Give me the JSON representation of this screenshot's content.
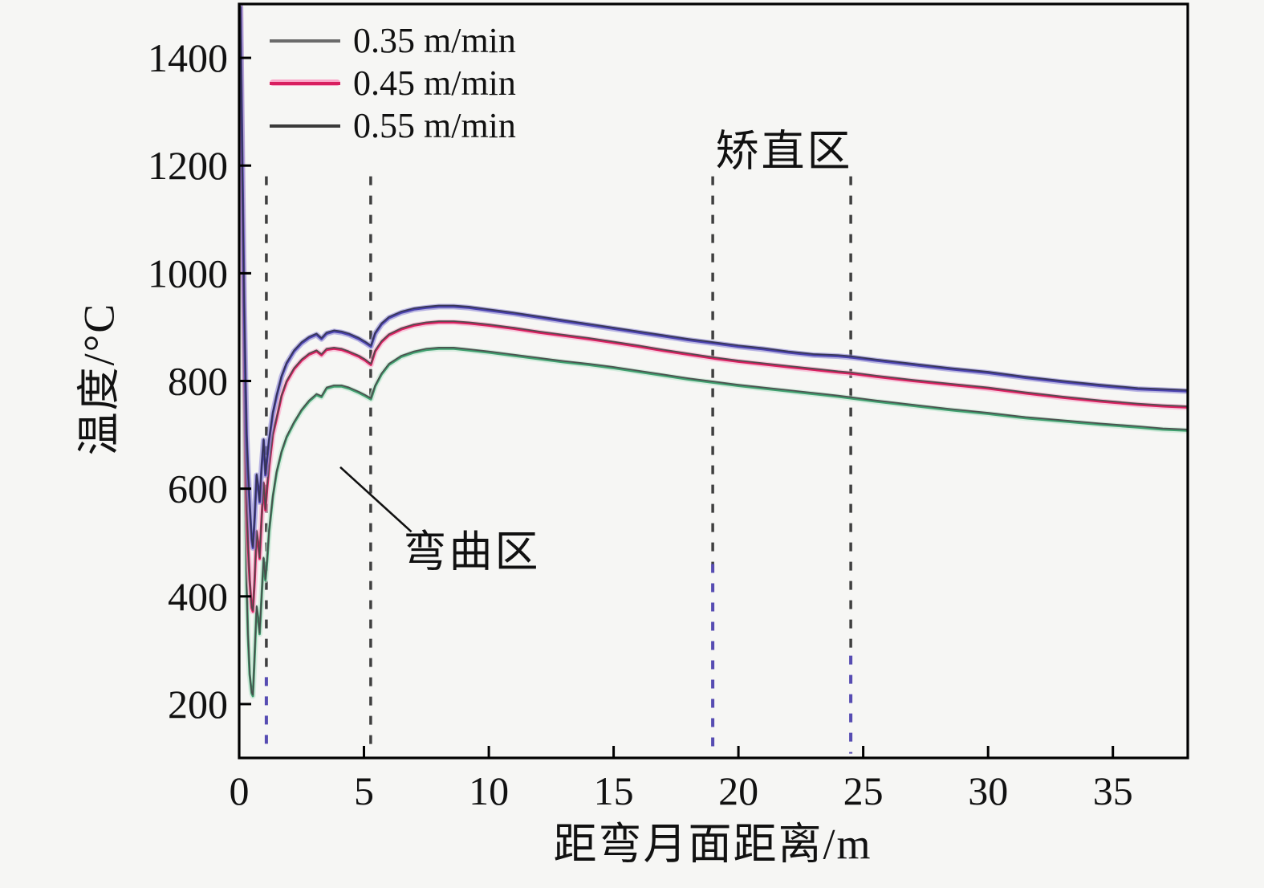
{
  "figure": {
    "background_color": "#f6f6f4",
    "frame_color": "#000000",
    "text_color": "#111111"
  },
  "legend": {
    "position": "top-left",
    "items": [
      {
        "label": "0.35 m/min",
        "line_color": "#6b6b6b",
        "halo_color": "none"
      },
      {
        "label": "0.45 m/min",
        "line_color": "#d81f5f",
        "halo_color": "#f9a8c9"
      },
      {
        "label": "0.55 m/min",
        "line_color": "#3a3a3a",
        "halo_color": "none"
      }
    ]
  },
  "annotations": {
    "straightening_zone_label": "矫直区",
    "bending_zone_label": "弯曲区"
  },
  "chart_data": {
    "type": "line",
    "title": "",
    "xlabel": "距弯月面距离/m",
    "ylabel": "温度/°C",
    "xlim": [
      0,
      38
    ],
    "ylim": [
      100,
      1500
    ],
    "x_ticks": [
      0,
      5,
      10,
      15,
      20,
      25,
      30,
      35
    ],
    "y_ticks": [
      200,
      400,
      600,
      800,
      1000,
      1200,
      1400
    ],
    "grid": false,
    "legend_position": "top-left",
    "zone_lines": [
      {
        "x": 1.09,
        "t_top": 1180,
        "t_bottom": 108,
        "t_color_split": 250,
        "color_upper": "#3f3f3f",
        "color_lower": "#564cb2"
      },
      {
        "x": 5.27,
        "t_top": 1180,
        "t_bottom": 108,
        "t_color_split": null,
        "color_upper": "#3f3f3f",
        "color_lower": "#3f3f3f"
      },
      {
        "x": 18.97,
        "t_top": 1180,
        "t_bottom": 108,
        "t_color_split": 460,
        "color_upper": "#3f3f3f",
        "color_lower": "#564cb2"
      },
      {
        "x": 24.5,
        "t_top": 1180,
        "t_bottom": 108,
        "t_color_split": 290,
        "color_upper": "#3f3f3f",
        "color_lower": "#564cb2"
      }
    ],
    "leader_line": {
      "x1": 4.05,
      "t1": 640,
      "x2": 6.9,
      "t2": 520
    },
    "series": [
      {
        "name": "0.35 m/min",
        "halo": "#bfe6cf",
        "main": "#3f9e6e",
        "core": "#4a4a4a",
        "points": [
          [
            0.05,
            1495
          ],
          [
            0.1,
            1230
          ],
          [
            0.15,
            980
          ],
          [
            0.2,
            760
          ],
          [
            0.25,
            560
          ],
          [
            0.3,
            420
          ],
          [
            0.35,
            330
          ],
          [
            0.42,
            255
          ],
          [
            0.5,
            220
          ],
          [
            0.55,
            215
          ],
          [
            0.62,
            290
          ],
          [
            0.7,
            380
          ],
          [
            0.76,
            360
          ],
          [
            0.82,
            330
          ],
          [
            0.9,
            400
          ],
          [
            0.98,
            470
          ],
          [
            1.05,
            430
          ],
          [
            1.12,
            465
          ],
          [
            1.2,
            520
          ],
          [
            1.35,
            585
          ],
          [
            1.5,
            630
          ],
          [
            1.7,
            668
          ],
          [
            1.9,
            695
          ],
          [
            2.2,
            722
          ],
          [
            2.5,
            745
          ],
          [
            2.8,
            762
          ],
          [
            3.1,
            774
          ],
          [
            3.3,
            770
          ],
          [
            3.5,
            786
          ],
          [
            3.8,
            790
          ],
          [
            4.1,
            790
          ],
          [
            4.4,
            786
          ],
          [
            4.8,
            778
          ],
          [
            5.05,
            772
          ],
          [
            5.28,
            766
          ],
          [
            5.45,
            790
          ],
          [
            5.7,
            812
          ],
          [
            6.0,
            830
          ],
          [
            6.5,
            845
          ],
          [
            7.0,
            853
          ],
          [
            7.5,
            858
          ],
          [
            8.0,
            860
          ],
          [
            8.6,
            860
          ],
          [
            9.2,
            857
          ],
          [
            10,
            853
          ],
          [
            11,
            847
          ],
          [
            12,
            841
          ],
          [
            13,
            835
          ],
          [
            14,
            830
          ],
          [
            15,
            824
          ],
          [
            16,
            817
          ],
          [
            17,
            810
          ],
          [
            18,
            803
          ],
          [
            19,
            797
          ],
          [
            20,
            791
          ],
          [
            21,
            786
          ],
          [
            22,
            781
          ],
          [
            23,
            776
          ],
          [
            24,
            771
          ],
          [
            24.5,
            768
          ],
          [
            25.5,
            762
          ],
          [
            27,
            754
          ],
          [
            28.5,
            746
          ],
          [
            30,
            739
          ],
          [
            31.5,
            731
          ],
          [
            33,
            725
          ],
          [
            34.5,
            719
          ],
          [
            36,
            714
          ],
          [
            37,
            710
          ],
          [
            38,
            708
          ]
        ]
      },
      {
        "name": "0.45 m/min",
        "halo": "#f9a8c9",
        "main": "#d81f5f",
        "core": "#4a4a4a",
        "points": [
          [
            0.05,
            1495
          ],
          [
            0.1,
            1270
          ],
          [
            0.15,
            1050
          ],
          [
            0.2,
            850
          ],
          [
            0.25,
            690
          ],
          [
            0.3,
            580
          ],
          [
            0.35,
            500
          ],
          [
            0.42,
            430
          ],
          [
            0.5,
            378
          ],
          [
            0.55,
            372
          ],
          [
            0.62,
            430
          ],
          [
            0.7,
            520
          ],
          [
            0.76,
            500
          ],
          [
            0.82,
            470
          ],
          [
            0.9,
            545
          ],
          [
            0.98,
            610
          ],
          [
            1.05,
            560
          ],
          [
            1.12,
            600
          ],
          [
            1.2,
            640
          ],
          [
            1.35,
            700
          ],
          [
            1.5,
            730
          ],
          [
            1.7,
            772
          ],
          [
            1.9,
            798
          ],
          [
            2.2,
            822
          ],
          [
            2.5,
            838
          ],
          [
            2.8,
            849
          ],
          [
            3.1,
            855
          ],
          [
            3.3,
            848
          ],
          [
            3.5,
            858
          ],
          [
            3.8,
            860
          ],
          [
            4.1,
            858
          ],
          [
            4.4,
            853
          ],
          [
            4.8,
            845
          ],
          [
            5.05,
            838
          ],
          [
            5.28,
            830
          ],
          [
            5.45,
            855
          ],
          [
            5.7,
            872
          ],
          [
            6.0,
            885
          ],
          [
            6.5,
            896
          ],
          [
            7.0,
            903
          ],
          [
            7.5,
            907
          ],
          [
            8.0,
            909
          ],
          [
            8.6,
            909
          ],
          [
            9.2,
            907
          ],
          [
            10,
            903
          ],
          [
            11,
            897
          ],
          [
            12,
            890
          ],
          [
            13,
            884
          ],
          [
            14,
            878
          ],
          [
            15,
            871
          ],
          [
            16,
            864
          ],
          [
            17,
            856
          ],
          [
            18,
            849
          ],
          [
            19,
            842
          ],
          [
            20,
            836
          ],
          [
            21,
            831
          ],
          [
            22,
            826
          ],
          [
            23,
            821
          ],
          [
            24,
            816
          ],
          [
            24.5,
            814
          ],
          [
            25.5,
            808
          ],
          [
            27,
            800
          ],
          [
            28.5,
            793
          ],
          [
            30,
            786
          ],
          [
            31.5,
            777
          ],
          [
            33,
            769
          ],
          [
            34.5,
            762
          ],
          [
            36,
            756
          ],
          [
            37,
            753
          ],
          [
            38,
            751
          ]
        ]
      },
      {
        "name": "0.55 m/min",
        "halo": "#8f88d6",
        "main": "#4a42ae",
        "core": "#34344e",
        "points": [
          [
            0.05,
            1495
          ],
          [
            0.1,
            1310
          ],
          [
            0.15,
            1120
          ],
          [
            0.2,
            950
          ],
          [
            0.25,
            810
          ],
          [
            0.3,
            700
          ],
          [
            0.35,
            640
          ],
          [
            0.42,
            570
          ],
          [
            0.5,
            505
          ],
          [
            0.55,
            490
          ],
          [
            0.62,
            545
          ],
          [
            0.7,
            625
          ],
          [
            0.76,
            605
          ],
          [
            0.82,
            575
          ],
          [
            0.9,
            640
          ],
          [
            0.98,
            690
          ],
          [
            1.05,
            625
          ],
          [
            1.12,
            655
          ],
          [
            1.2,
            690
          ],
          [
            1.35,
            740
          ],
          [
            1.5,
            772
          ],
          [
            1.7,
            808
          ],
          [
            1.9,
            832
          ],
          [
            2.2,
            855
          ],
          [
            2.5,
            870
          ],
          [
            2.8,
            880
          ],
          [
            3.1,
            886
          ],
          [
            3.3,
            878
          ],
          [
            3.5,
            888
          ],
          [
            3.8,
            892
          ],
          [
            4.1,
            890
          ],
          [
            4.4,
            886
          ],
          [
            4.8,
            878
          ],
          [
            5.05,
            871
          ],
          [
            5.28,
            864
          ],
          [
            5.45,
            888
          ],
          [
            5.7,
            905
          ],
          [
            6.0,
            917
          ],
          [
            6.5,
            927
          ],
          [
            7.0,
            933
          ],
          [
            7.5,
            936
          ],
          [
            8.0,
            938
          ],
          [
            8.6,
            938
          ],
          [
            9.2,
            936
          ],
          [
            10,
            931
          ],
          [
            11,
            925
          ],
          [
            12,
            918
          ],
          [
            13,
            911
          ],
          [
            14,
            904
          ],
          [
            15,
            897
          ],
          [
            16,
            890
          ],
          [
            17,
            883
          ],
          [
            18,
            876
          ],
          [
            19,
            870
          ],
          [
            20,
            864
          ],
          [
            21,
            859
          ],
          [
            22,
            853
          ],
          [
            23,
            848
          ],
          [
            24,
            846
          ],
          [
            24.5,
            844
          ],
          [
            25.5,
            838
          ],
          [
            27,
            830
          ],
          [
            28.5,
            822
          ],
          [
            30,
            815
          ],
          [
            31.5,
            806
          ],
          [
            33,
            798
          ],
          [
            34.5,
            791
          ],
          [
            36,
            785
          ],
          [
            37,
            783
          ],
          [
            38,
            781
          ]
        ]
      }
    ]
  }
}
